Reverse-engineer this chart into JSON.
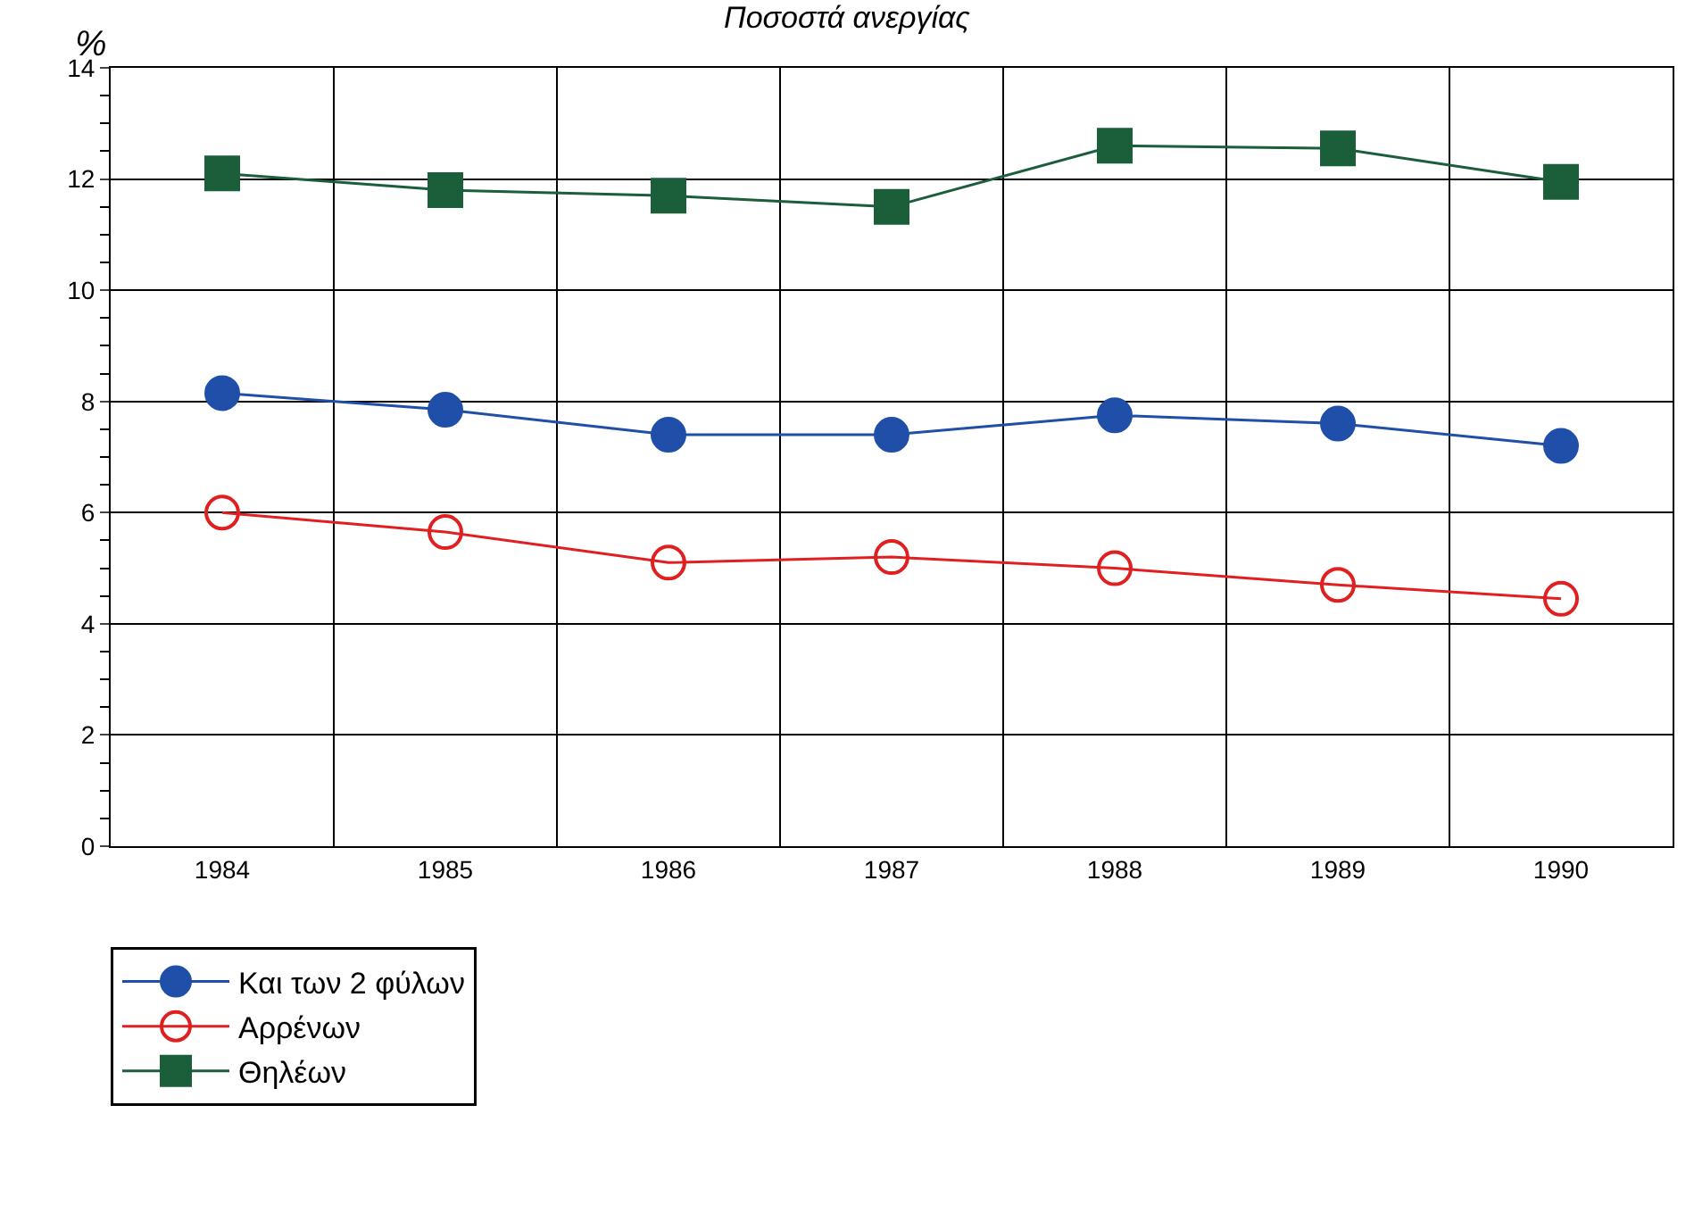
{
  "chart_data": {
    "type": "line",
    "title": "Ποσοστά ανεργίας",
    "ylabel": "%",
    "categories": [
      "1984",
      "1985",
      "1986",
      "1987",
      "1988",
      "1989",
      "1990"
    ],
    "series": [
      {
        "name": "Και των 2 φύλων",
        "color": "#1f4fa8",
        "marker": "circle",
        "values": [
          8.15,
          7.85,
          7.4,
          7.4,
          7.75,
          7.6,
          7.2
        ]
      },
      {
        "name": "Αρρένων",
        "color": "#e02020",
        "marker": "circle-open",
        "values": [
          6.0,
          5.65,
          5.1,
          5.2,
          5.0,
          4.7,
          4.45
        ]
      },
      {
        "name": "Θηλέων",
        "color": "#1a5e3a",
        "marker": "square",
        "values": [
          12.1,
          11.8,
          11.7,
          11.5,
          12.6,
          12.55,
          11.95
        ]
      }
    ],
    "ylim": [
      0,
      14
    ],
    "yticks": [
      0,
      2,
      4,
      6,
      8,
      10,
      12,
      14
    ],
    "grid": true,
    "legend": "bottom left",
    "line_style": "solid"
  }
}
